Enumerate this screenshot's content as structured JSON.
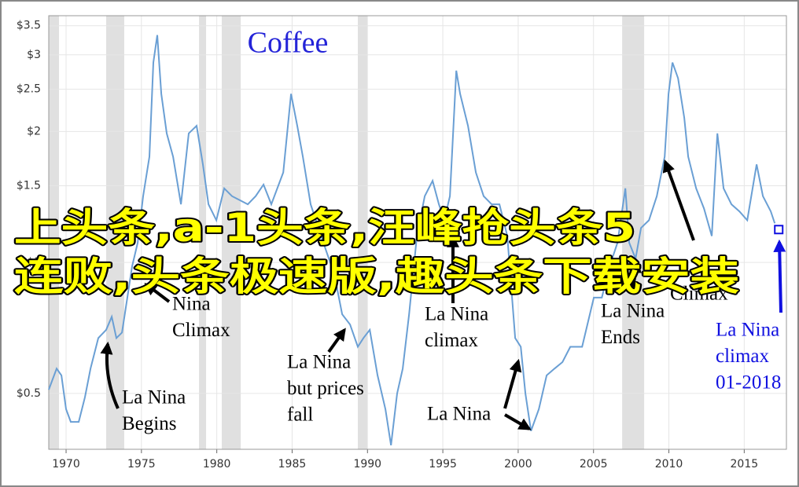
{
  "chart_data": {
    "type": "line",
    "title": "Coffee",
    "title_color": "#2424d8",
    "color": "#6a9fd4",
    "log_scale": true,
    "grid": true,
    "x": [
      1968.85,
      1969.37,
      1969.69,
      1970.0,
      1970.31,
      1970.84,
      1971.25,
      1971.62,
      1972.14,
      1972.66,
      1973.03,
      1973.34,
      1973.71,
      1973.97,
      1974.38,
      1974.75,
      1975.11,
      1975.53,
      1975.79,
      1976.05,
      1976.32,
      1976.68,
      1977.1,
      1977.62,
      1978.14,
      1978.66,
      1979.08,
      1979.45,
      1979.97,
      1980.49,
      1981.01,
      1981.53,
      1982.06,
      1982.58,
      1983.1,
      1983.62,
      1984.41,
      1984.93,
      1985.34,
      1985.71,
      1986.23,
      1986.75,
      1987.27,
      1987.8,
      1988.32,
      1988.84,
      1989.36,
      1989.73,
      1990.15,
      1990.67,
      1991.19,
      1991.56,
      1991.97,
      1992.34,
      1992.76,
      1993.28,
      1993.8,
      1994.32,
      1994.74,
      1995.1,
      1995.47,
      1995.89,
      1996.15,
      1996.67,
      1997.19,
      1997.71,
      1998.24,
      1998.76,
      1999.28,
      1999.8,
      2000.17,
      2000.48,
      2000.85,
      2001.37,
      2001.89,
      2002.41,
      2002.94,
      2003.46,
      2004.24,
      2005.02,
      2005.55,
      2006.07,
      2006.59,
      2007.11,
      2007.37,
      2007.79,
      2008.15,
      2008.68,
      2009.2,
      2009.72,
      2009.98,
      2010.24,
      2010.61,
      2011.02,
      2011.28,
      2011.81,
      2012.33,
      2012.85,
      2013.22,
      2013.63,
      2014.15,
      2014.68,
      2015.2,
      2015.82,
      2016.24,
      2016.76,
      2017.03
    ],
    "values": [
      0.51,
      0.57,
      0.55,
      0.46,
      0.43,
      0.43,
      0.49,
      0.57,
      0.67,
      0.7,
      0.75,
      0.67,
      0.69,
      0.79,
      0.98,
      1.11,
      1.42,
      1.75,
      2.88,
      3.33,
      2.44,
      1.98,
      1.75,
      1.36,
      1.98,
      2.06,
      1.68,
      1.36,
      1.25,
      1.48,
      1.42,
      1.39,
      1.36,
      1.42,
      1.51,
      1.36,
      1.61,
      2.44,
      2.06,
      1.75,
      1.36,
      1.2,
      1.06,
      0.94,
      0.76,
      0.72,
      0.64,
      0.67,
      0.7,
      0.55,
      0.46,
      0.38,
      0.5,
      0.57,
      0.76,
      1.15,
      1.42,
      1.54,
      1.36,
      1.25,
      1.42,
      2.76,
      2.44,
      2.06,
      1.61,
      1.42,
      1.36,
      1.36,
      1.15,
      0.67,
      0.64,
      0.5,
      0.41,
      0.46,
      0.55,
      0.57,
      0.59,
      0.64,
      0.64,
      0.83,
      0.83,
      0.98,
      1.11,
      1.48,
      1.11,
      1.02,
      1.2,
      1.25,
      1.42,
      1.75,
      2.44,
      2.88,
      2.65,
      2.15,
      1.75,
      1.48,
      1.33,
      1.15,
      1.98,
      1.48,
      1.36,
      1.31,
      1.25,
      1.68,
      1.42,
      1.31,
      1.23
    ],
    "xlim": [
      1968.85,
      2017.8
    ],
    "ylim": [
      0.372,
      3.69
    ],
    "xticks": [
      1970,
      1975,
      1980,
      1985,
      1990,
      1995,
      2000,
      2005,
      2010,
      2015
    ],
    "yticks": [
      {
        "value": 0.5,
        "label": "$0.5"
      },
      {
        "value": 1,
        "label": "$1"
      },
      {
        "value": 1.5,
        "label": "$1.5"
      },
      {
        "value": 2,
        "label": "$2"
      },
      {
        "value": 2.5,
        "label": "$2.5"
      },
      {
        "value": 3,
        "label": "$3"
      },
      {
        "value": 3.5,
        "label": "$3.5"
      }
    ],
    "shaded_periods": [
      [
        1968.85,
        1969.53
      ],
      [
        1972.66,
        1973.86
      ],
      [
        1978.82,
        1979.29
      ],
      [
        1980.33,
        1981.59
      ],
      [
        1989.36,
        1989.99
      ],
      [
        2006.9,
        2008.36
      ]
    ],
    "shade_color": "#e0e0e0",
    "annotations": [
      {
        "lines": [
          "La Nina",
          "Begins"
        ],
        "color": "#000000"
      },
      {
        "lines": [
          "Nina",
          "Climax"
        ],
        "color": "#000000"
      },
      {
        "lines": [
          "La Nina",
          "but prices",
          "fall"
        ],
        "color": "#000000"
      },
      {
        "lines": [
          "La Nina",
          "climax"
        ],
        "color": "#000000"
      },
      {
        "lines": [
          "La Nina"
        ],
        "color": "#000000"
      },
      {
        "lines": [
          "La Nina",
          "Ends"
        ],
        "color": "#000000"
      },
      {
        "lines": [
          "Climax"
        ],
        "color": "#000000"
      },
      {
        "lines": [
          "La Nina",
          "climax",
          "01-2018"
        ],
        "color": "#1010e0"
      }
    ],
    "endpoint": {
      "x": 2017.29,
      "value": 1.19,
      "color": "#1010e0"
    }
  },
  "overlay_text": [
    "上头条,a-1头条,汪峰抢头条5",
    "连败,头条极速版,趣头条下载安装"
  ]
}
